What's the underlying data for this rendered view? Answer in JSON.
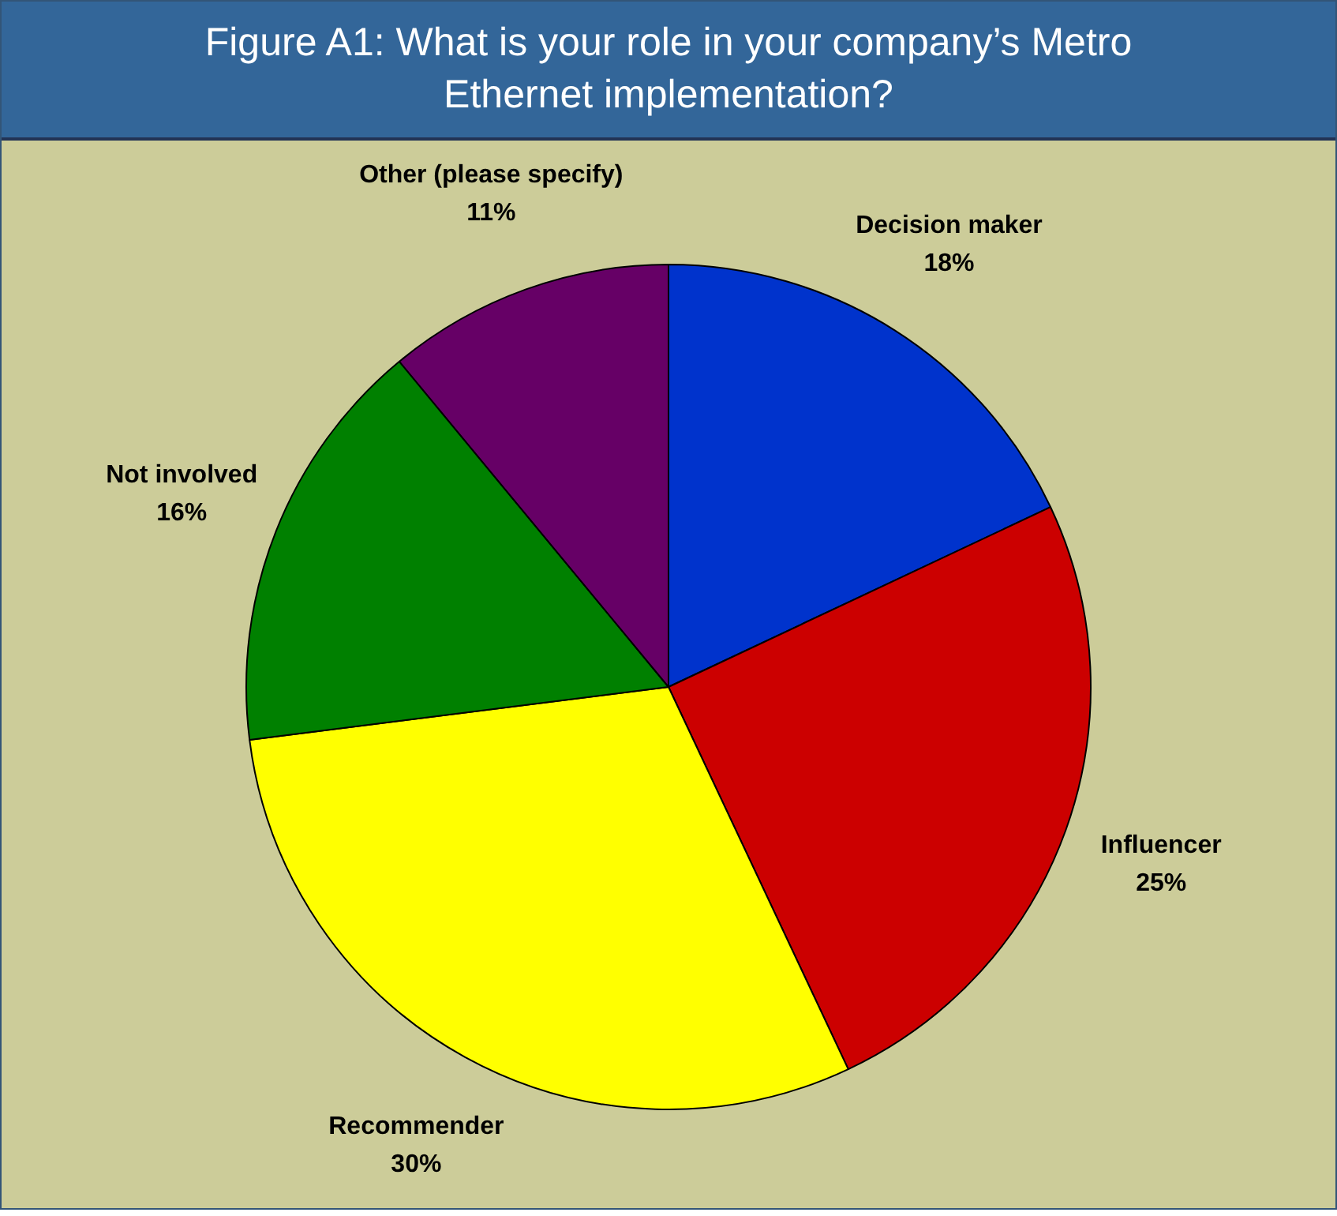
{
  "chart_data": {
    "type": "pie",
    "title": "Figure A1: What is your role in your company’s Metro Ethernet implementation?",
    "categories": [
      "Decision maker",
      "Influencer",
      "Recommender",
      "Not involved",
      "Other (please specify)"
    ],
    "values": [
      18,
      25,
      30,
      16,
      11
    ],
    "colors": [
      "#0033cc",
      "#cc0000",
      "#ffff00",
      "#008000",
      "#660066"
    ],
    "value_labels": [
      "18%",
      "25%",
      "30%",
      "16%",
      "11%"
    ],
    "legend": false
  }
}
